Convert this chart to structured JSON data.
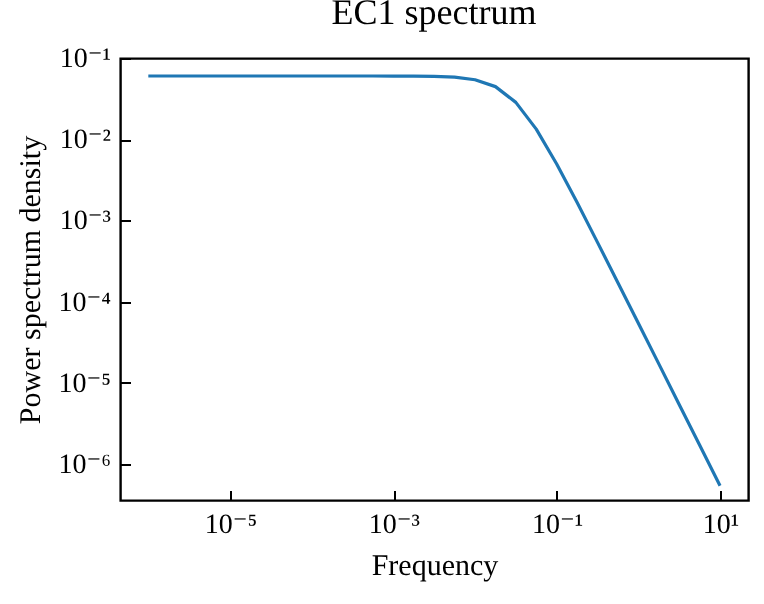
{
  "chart_data": {
    "type": "line",
    "title": "EC1 spectrum",
    "xlabel": "Frequency",
    "ylabel": "Power spectrum density",
    "log": "xy",
    "grid": false,
    "x": [
      1e-06,
      1e-05,
      0.0001,
      0.000178,
      0.000316,
      0.000562,
      0.001,
      0.00178,
      0.00316,
      0.00562,
      0.01,
      0.0178,
      0.0316,
      0.0562,
      0.1,
      0.178,
      0.316,
      0.562,
      1,
      1.78,
      3.16,
      5.62,
      10
    ],
    "series": [
      {
        "color": "#1f77b4",
        "values": [
          0.06,
          0.06,
          0.06,
          0.06,
          0.06,
          0.06,
          0.0599,
          0.0598,
          0.0593,
          0.058,
          0.054,
          0.0444,
          0.0284,
          0.0133,
          0.00495,
          0.00166,
          0.000536,
          0.000171,
          5.4e-05,
          1.71e-05,
          5.4e-06,
          1.71e-06,
          5.4e-07
        ]
      }
    ],
    "xlim": [
      4.5e-07,
      22
    ],
    "ylim": [
      3.6e-07,
      0.1
    ],
    "xticks": [
      {
        "value": 1e-05,
        "label": "10⁻⁵"
      },
      {
        "value": 0.001,
        "label": "10⁻³"
      },
      {
        "value": 0.1,
        "label": "10⁻¹"
      },
      {
        "value": 10,
        "label": "10¹"
      }
    ],
    "yticks": [
      {
        "value": 1e-06,
        "label": "10⁻⁶"
      },
      {
        "value": 1e-05,
        "label": "10⁻⁵"
      },
      {
        "value": 0.0001,
        "label": "10⁻⁴"
      },
      {
        "value": 0.001,
        "label": "10⁻³"
      },
      {
        "value": 0.01,
        "label": "10⁻²"
      },
      {
        "value": 0.1,
        "label": "10⁻¹"
      }
    ]
  }
}
